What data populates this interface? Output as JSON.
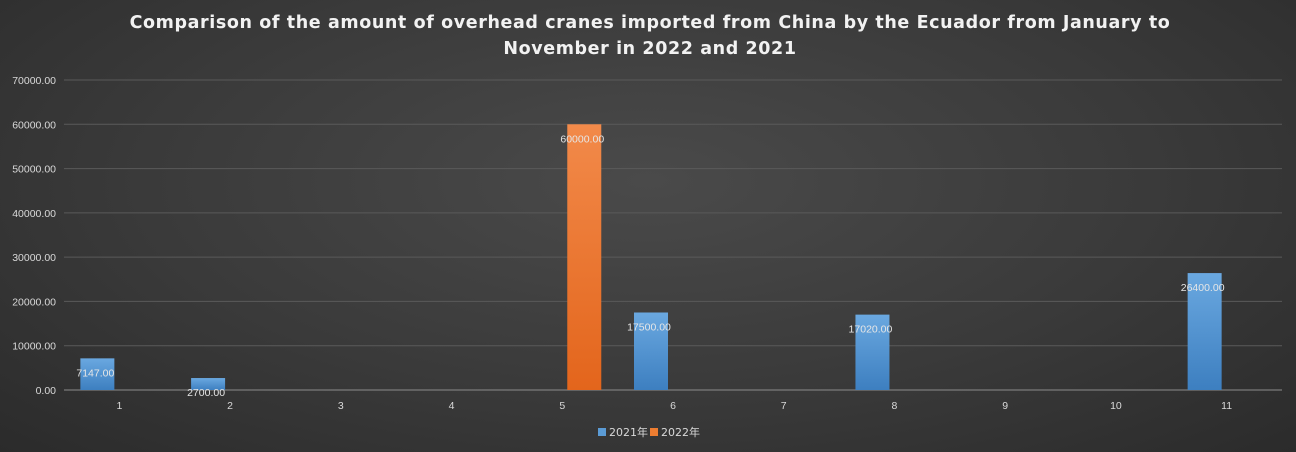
{
  "chart_data": {
    "type": "bar",
    "title": "Comparison of the amount of overhead cranes imported from China by the Ecuador from January to November in 2022 and 2021",
    "categories": [
      "1",
      "2",
      "3",
      "4",
      "5",
      "6",
      "7",
      "8",
      "9",
      "10",
      "11"
    ],
    "series": [
      {
        "name": "2021年",
        "color": "#5b9bd5",
        "values": [
          7147.0,
          2700.0,
          null,
          null,
          null,
          17500.0,
          null,
          17020.0,
          null,
          null,
          26400.0
        ],
        "labels": [
          "7147.00",
          "2700.00",
          "",
          "",
          "",
          "17500.00",
          "",
          "17020.00",
          "",
          "",
          "26400.00"
        ]
      },
      {
        "name": "2022年",
        "color": "#ed7d31",
        "values": [
          null,
          null,
          null,
          null,
          60000.0,
          null,
          null,
          null,
          null,
          null,
          null
        ],
        "labels": [
          "",
          "",
          "",
          "",
          "60000.00",
          "",
          "",
          "",
          "",
          "",
          ""
        ]
      }
    ],
    "ylim": [
      0,
      70000
    ],
    "yticks": [
      "0.00",
      "10000.00",
      "20000.00",
      "30000.00",
      "40000.00",
      "50000.00",
      "60000.00",
      "70000.00"
    ],
    "grid": true,
    "legend_position": "bottom"
  }
}
